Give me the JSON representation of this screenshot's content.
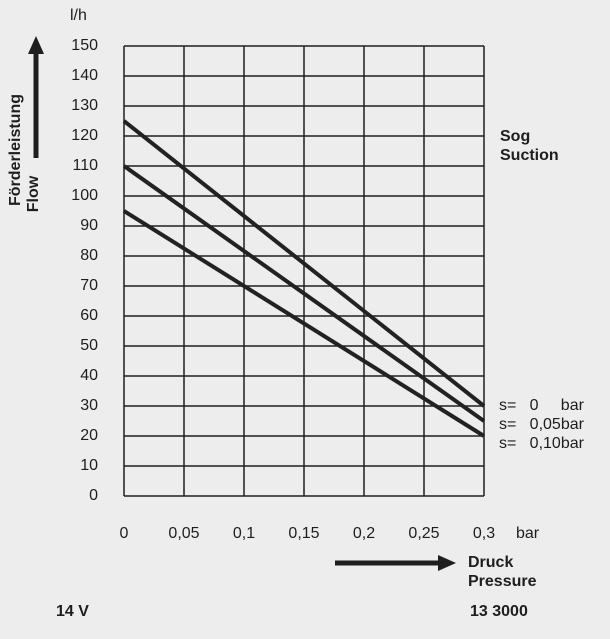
{
  "chart_data": {
    "type": "line",
    "x": [
      0,
      0.3
    ],
    "series": [
      {
        "name": "s=   0     bar",
        "color": "#222222",
        "values": [
          125,
          30
        ]
      },
      {
        "name": "s=   0,05bar",
        "color": "#222222",
        "values": [
          110,
          25
        ]
      },
      {
        "name": "s=   0,10bar",
        "color": "#222222",
        "values": [
          95,
          20
        ]
      }
    ],
    "xlim": [
      0,
      0.3
    ],
    "ylim": [
      0,
      150
    ],
    "xticks": [
      0,
      {
        "value": 0.05,
        "label": "0,05"
      },
      {
        "value": 0.1,
        "label": "0,1"
      },
      {
        "value": 0.15,
        "label": "0,15"
      },
      {
        "value": 0.2,
        "label": "0,2"
      },
      {
        "value": 0.25,
        "label": "0,25"
      },
      {
        "value": 0.3,
        "label": "0,3"
      }
    ],
    "yticks": [
      0,
      10,
      20,
      30,
      40,
      50,
      60,
      70,
      80,
      90,
      100,
      110,
      120,
      130,
      140,
      150
    ],
    "grid": true,
    "x_unit": "bar",
    "y_unit": "l/h",
    "ylabel": [
      "Förderleistung",
      "Flow"
    ],
    "xlabel": [
      "Druck",
      "Pressure"
    ],
    "annotations": [
      "Sog",
      "Suction"
    ],
    "footer": [
      "14 V",
      "13 3000"
    ]
  }
}
